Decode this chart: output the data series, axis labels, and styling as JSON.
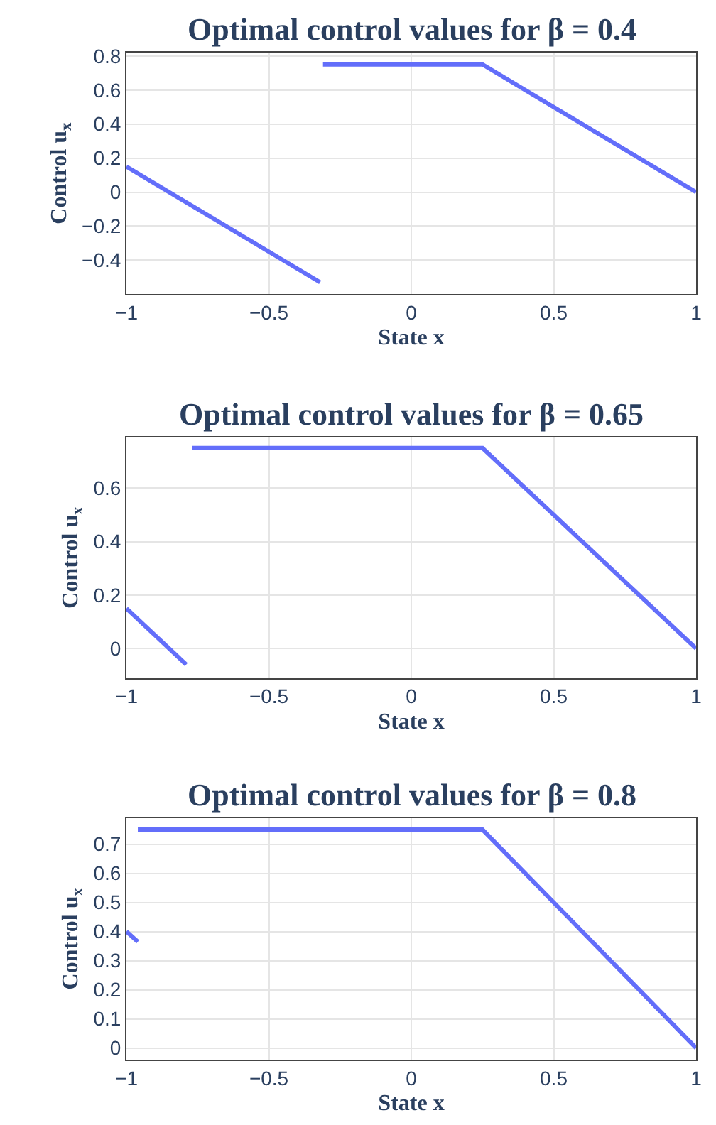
{
  "chart_data": [
    {
      "type": "line",
      "title": "Optimal control values for β = 0.4",
      "xlabel": "State x",
      "ylabel": "Control u$_{x}$",
      "grid": true,
      "xlim": [
        -1,
        1
      ],
      "xticks": [
        -1,
        -0.5,
        0,
        0.5,
        1
      ],
      "ylim": [
        -0.6,
        0.82
      ],
      "yticks": [
        -0.4,
        -0.2,
        0,
        0.2,
        0.4,
        0.6,
        0.8
      ],
      "series": [
        {
          "color": "#636efa",
          "x": [
            -1,
            -0.32,
            null,
            -0.31,
            0.25,
            1
          ],
          "values": [
            0.15,
            -0.53,
            null,
            0.75,
            0.75,
            0
          ]
        }
      ]
    },
    {
      "type": "line",
      "title": "Optimal control values for β = 0.65",
      "xlabel": "State x",
      "ylabel": "Control u$_{x}$",
      "grid": true,
      "xlim": [
        -1,
        1
      ],
      "xticks": [
        -1,
        -0.5,
        0,
        0.5,
        1
      ],
      "ylim": [
        -0.11,
        0.79
      ],
      "yticks": [
        0,
        0.2,
        0.4,
        0.6
      ],
      "series": [
        {
          "color": "#636efa",
          "x": [
            -1,
            -0.79,
            null,
            -0.77,
            0.25,
            1
          ],
          "values": [
            0.15,
            -0.06,
            null,
            0.75,
            0.75,
            0
          ]
        }
      ]
    },
    {
      "type": "line",
      "title": "Optimal control values for β = 0.8",
      "xlabel": "State x",
      "ylabel": "Control u$_{x}$",
      "grid": true,
      "xlim": [
        -1,
        1
      ],
      "xticks": [
        -1,
        -0.5,
        0,
        0.5,
        1
      ],
      "ylim": [
        -0.04,
        0.79
      ],
      "yticks": [
        0,
        0.1,
        0.2,
        0.3,
        0.4,
        0.5,
        0.6,
        0.7
      ],
      "series": [
        {
          "color": "#636efa",
          "x": [
            -1,
            -0.96,
            null,
            -0.96,
            0.25,
            1
          ],
          "values": [
            0.4,
            0.365,
            null,
            0.75,
            0.75,
            0
          ]
        }
      ]
    }
  ]
}
